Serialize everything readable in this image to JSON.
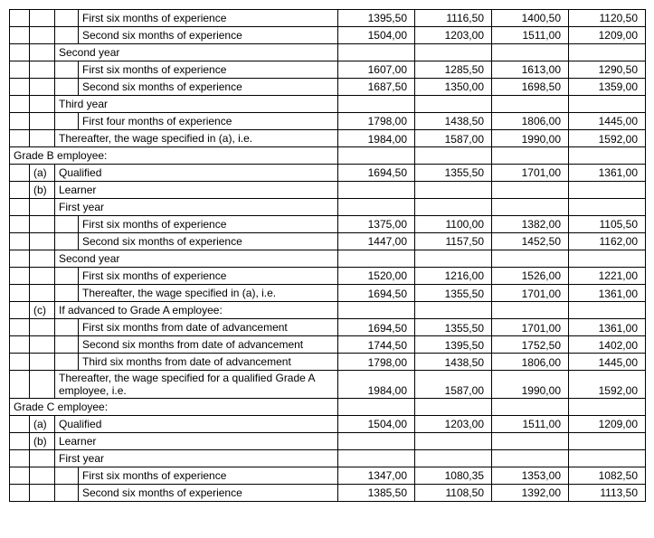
{
  "rows": [
    {
      "c1": "",
      "c2": "",
      "c3": "",
      "desc": "First six months of experience",
      "v": [
        "1395,50",
        "1116,50",
        "1400,50",
        "1120,50"
      ]
    },
    {
      "c1": "",
      "c2": "",
      "c3": "",
      "desc": "Second six months of experience",
      "v": [
        "1504,00",
        "1203,00",
        "1511,00",
        "1209,00"
      ]
    },
    {
      "c1": "",
      "c2": "",
      "desc_span": 2,
      "desc": "Second year",
      "v": [
        "",
        "",
        "",
        ""
      ]
    },
    {
      "c1": "",
      "c2": "",
      "c3": "",
      "desc": "First six months of experience",
      "v": [
        "1607,00",
        "1285,50",
        "1613,00",
        "1290,50"
      ]
    },
    {
      "c1": "",
      "c2": "",
      "c3": "",
      "desc": "Second six months of experience",
      "v": [
        "1687,50",
        "1350,00",
        "1698,50",
        "1359,00"
      ]
    },
    {
      "c1": "",
      "c2": "",
      "desc_span": 2,
      "desc": "Third year",
      "v": [
        "",
        "",
        "",
        ""
      ]
    },
    {
      "c1": "",
      "c2": "",
      "c3": "",
      "desc": "First four months of experience",
      "v": [
        "1798,00",
        "1438,50",
        "1806,00",
        "1445,00"
      ]
    },
    {
      "c1": "",
      "c2": "",
      "desc_span": 2,
      "desc": "Thereafter, the wage specified in (a), i.e.",
      "wrap": true,
      "v": [
        "1984,00",
        "1587,00",
        "1990,00",
        "1592,00"
      ]
    },
    {
      "full_span": true,
      "desc": "Grade B employee:",
      "v": [
        "",
        "",
        "",
        ""
      ]
    },
    {
      "c1": "",
      "c2": "(a)",
      "desc_span": 2,
      "desc": "Qualified",
      "v": [
        "1694,50",
        "1355,50",
        "1701,00",
        "1361,00"
      ]
    },
    {
      "c1": "",
      "c2": "(b)",
      "desc_span": 2,
      "desc": "Learner",
      "v": [
        "",
        "",
        "",
        ""
      ]
    },
    {
      "c1": "",
      "c2": "",
      "desc_span": 2,
      "desc": "First year",
      "v": [
        "",
        "",
        "",
        ""
      ]
    },
    {
      "c1": "",
      "c2": "",
      "c3": "",
      "desc": "First six months of experience",
      "v": [
        "1375,00",
        "1100,00",
        "1382,00",
        "1105,50"
      ]
    },
    {
      "c1": "",
      "c2": "",
      "c3": "",
      "desc": "Second six months of experience",
      "v": [
        "1447,00",
        "1157,50",
        "1452,50",
        "1162,00"
      ]
    },
    {
      "c1": "",
      "c2": "",
      "desc_span": 2,
      "desc": "Second year",
      "v": [
        "",
        "",
        "",
        ""
      ]
    },
    {
      "c1": "",
      "c2": "",
      "c3": "",
      "desc": "First six months of experience",
      "v": [
        "1520,00",
        "1216,00",
        "1526,00",
        "1221,00"
      ]
    },
    {
      "c1": "",
      "c2": "",
      "c3": "",
      "desc": "Thereafter, the wage specified in (a), i.e.",
      "wrap": true,
      "v": [
        "1694,50",
        "1355,50",
        "1701,00",
        "1361,00"
      ]
    },
    {
      "c1": "",
      "c2": "(c)",
      "desc_span": 2,
      "desc": "If advanced to Grade A employee:",
      "v": [
        "",
        "",
        "",
        ""
      ]
    },
    {
      "c1": "",
      "c2": "",
      "c3": "",
      "desc": "First six months from date of advancement",
      "wrap": true,
      "v": [
        "1694,50",
        "1355,50",
        "1701,00",
        "1361,00"
      ]
    },
    {
      "c1": "",
      "c2": "",
      "c3": "",
      "desc": "Second six months from date of advancement",
      "wrap": true,
      "v": [
        "1744,50",
        "1395,50",
        "1752,50",
        "1402,00"
      ]
    },
    {
      "c1": "",
      "c2": "",
      "c3": "",
      "desc": "Third six months from date of advancement",
      "wrap": true,
      "v": [
        "1798,00",
        "1438,50",
        "1806,00",
        "1445,00"
      ]
    },
    {
      "c1": "",
      "c2": "",
      "desc_span": 2,
      "desc": "Thereafter, the wage specified for a qualified Grade A employee, i.e.",
      "wrap": true,
      "v": [
        "1984,00",
        "1587,00",
        "1990,00",
        "1592,00"
      ]
    },
    {
      "full_span": true,
      "desc": "Grade C employee:",
      "v": [
        "",
        "",
        "",
        ""
      ]
    },
    {
      "c1": "",
      "c2": "(a)",
      "desc_span": 2,
      "desc": "Qualified",
      "v": [
        "1504,00",
        "1203,00",
        "1511,00",
        "1209,00"
      ]
    },
    {
      "c1": "",
      "c2": "(b)",
      "desc_span": 2,
      "desc": "Learner",
      "v": [
        "",
        "",
        "",
        ""
      ]
    },
    {
      "c1": "",
      "c2": "",
      "desc_span": 2,
      "desc": "First year",
      "v": [
        "",
        "",
        "",
        ""
      ]
    },
    {
      "c1": "",
      "c2": "",
      "c3": "",
      "desc": "First six months of experience",
      "v": [
        "1347,00",
        "1080,35",
        "1353,00",
        "1082,50"
      ]
    },
    {
      "c1": "",
      "c2": "",
      "c3": "",
      "desc": "Second six months of experience",
      "v": [
        "1385,50",
        "1108,50",
        "1392,00",
        "1113,50"
      ]
    }
  ]
}
